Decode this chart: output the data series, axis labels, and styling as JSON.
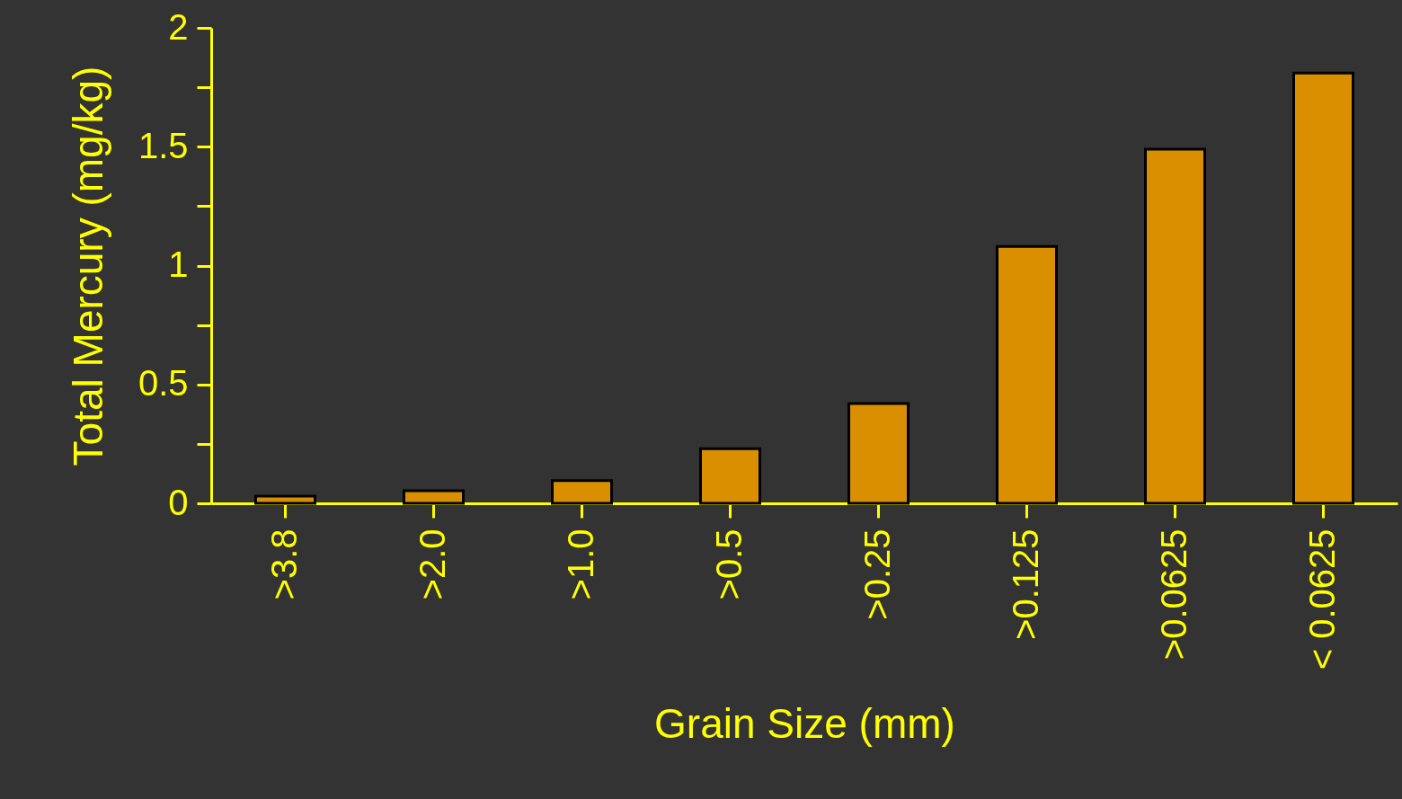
{
  "chart_data": {
    "type": "bar",
    "xlabel": "Grain Size (mm)",
    "ylabel": "Total Mercury (mg/kg)",
    "categories": [
      ">3.8",
      ">2.0",
      ">1.0",
      ">0.5",
      ">0.25",
      ">0.125",
      ">0.0625",
      "< 0.0625"
    ],
    "values": [
      0.03,
      0.053,
      0.095,
      0.23,
      0.42,
      1.08,
      1.49,
      1.81
    ],
    "color": "#d98f00",
    "ylim": [
      0,
      2
    ],
    "yticks": [
      0,
      {
        "value": 0.25,
        "label": null
      },
      0.5,
      {
        "value": 0.75,
        "label": null
      },
      1,
      {
        "value": 1.25,
        "label": null
      },
      1.5,
      {
        "value": 1.75,
        "label": null
      },
      2
    ],
    "grid": false
  }
}
